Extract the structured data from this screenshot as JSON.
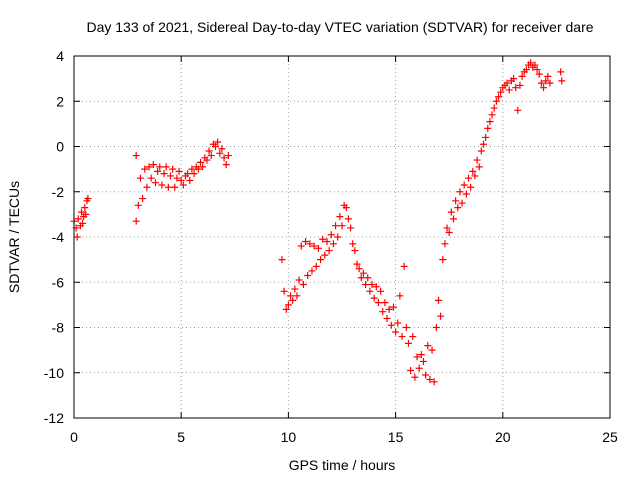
{
  "chart_data": {
    "type": "scatter",
    "title": "Day 133 of 2021, Sidereal Day-to-day VTEC variation (SDTVAR) for receiver dare",
    "xlabel": "GPS time / hours",
    "ylabel": "SDTVAR / TECUs",
    "xlim": [
      0,
      25
    ],
    "ylim": [
      -12,
      4
    ],
    "xticks": [
      0,
      5,
      10,
      15,
      20,
      25
    ],
    "yticks": [
      -12,
      -10,
      -8,
      -6,
      -4,
      -2,
      0,
      2,
      4
    ],
    "grid": true,
    "marker": "plus",
    "color": "#ff0000",
    "series": [
      {
        "points": [
          [
            0.0,
            -3.3
          ],
          [
            0.1,
            -3.6
          ],
          [
            0.15,
            -4.0
          ],
          [
            0.2,
            -3.2
          ],
          [
            0.3,
            -3.5
          ],
          [
            0.35,
            -2.9
          ],
          [
            0.4,
            -3.4
          ],
          [
            0.45,
            -3.1
          ],
          [
            0.5,
            -2.7
          ],
          [
            0.55,
            -3.0
          ],
          [
            0.6,
            -2.4
          ],
          [
            0.65,
            -2.3
          ],
          [
            2.9,
            -3.3
          ],
          [
            2.9,
            -0.4
          ],
          [
            3.0,
            -2.6
          ],
          [
            3.1,
            -1.4
          ],
          [
            3.2,
            -2.3
          ],
          [
            3.3,
            -1.0
          ],
          [
            3.4,
            -1.8
          ],
          [
            3.5,
            -0.9
          ],
          [
            3.6,
            -1.4
          ],
          [
            3.7,
            -0.8
          ],
          [
            3.8,
            -1.6
          ],
          [
            3.9,
            -1.1
          ],
          [
            4.0,
            -0.9
          ],
          [
            4.1,
            -1.7
          ],
          [
            4.2,
            -1.2
          ],
          [
            4.3,
            -0.9
          ],
          [
            4.4,
            -1.8
          ],
          [
            4.5,
            -1.3
          ],
          [
            4.6,
            -1.0
          ],
          [
            4.7,
            -1.8
          ],
          [
            4.8,
            -1.4
          ],
          [
            4.9,
            -1.1
          ],
          [
            5.0,
            -1.5
          ],
          [
            5.1,
            -1.7
          ],
          [
            5.2,
            -1.3
          ],
          [
            5.3,
            -1.2
          ],
          [
            5.4,
            -1.5
          ],
          [
            5.5,
            -1.0
          ],
          [
            5.6,
            -1.2
          ],
          [
            5.7,
            -0.9
          ],
          [
            5.8,
            -1.0
          ],
          [
            5.9,
            -0.7
          ],
          [
            6.0,
            -0.9
          ],
          [
            6.1,
            -0.5
          ],
          [
            6.2,
            -0.6
          ],
          [
            6.3,
            -0.2
          ],
          [
            6.4,
            -0.4
          ],
          [
            6.5,
            0.1
          ],
          [
            6.6,
            0.0
          ],
          [
            6.7,
            0.2
          ],
          [
            6.8,
            -0.3
          ],
          [
            6.9,
            -0.1
          ],
          [
            7.0,
            -0.5
          ],
          [
            7.1,
            -0.8
          ],
          [
            7.2,
            -0.4
          ],
          [
            9.7,
            -5.0
          ],
          [
            9.8,
            -6.4
          ],
          [
            9.9,
            -7.2
          ],
          [
            10.0,
            -7.0
          ],
          [
            10.1,
            -6.6
          ],
          [
            10.2,
            -6.8
          ],
          [
            10.3,
            -6.3
          ],
          [
            10.4,
            -6.6
          ],
          [
            10.5,
            -5.9
          ],
          [
            10.6,
            -4.4
          ],
          [
            10.7,
            -6.1
          ],
          [
            10.8,
            -4.2
          ],
          [
            10.9,
            -5.7
          ],
          [
            11.0,
            -4.3
          ],
          [
            11.1,
            -5.5
          ],
          [
            11.2,
            -4.4
          ],
          [
            11.3,
            -5.3
          ],
          [
            11.4,
            -4.5
          ],
          [
            11.5,
            -5.0
          ],
          [
            11.6,
            -4.1
          ],
          [
            11.7,
            -4.8
          ],
          [
            11.8,
            -4.2
          ],
          [
            11.9,
            -4.6
          ],
          [
            12.0,
            -3.9
          ],
          [
            12.1,
            -4.3
          ],
          [
            12.2,
            -3.5
          ],
          [
            12.3,
            -4.0
          ],
          [
            12.4,
            -3.1
          ],
          [
            12.5,
            -3.5
          ],
          [
            12.6,
            -2.6
          ],
          [
            12.7,
            -2.7
          ],
          [
            12.8,
            -3.2
          ],
          [
            12.9,
            -3.6
          ],
          [
            13.0,
            -4.3
          ],
          [
            13.1,
            -4.6
          ],
          [
            13.2,
            -5.2
          ],
          [
            13.3,
            -5.4
          ],
          [
            13.4,
            -5.8
          ],
          [
            13.5,
            -5.6
          ],
          [
            13.6,
            -6.1
          ],
          [
            13.7,
            -5.8
          ],
          [
            13.8,
            -6.4
          ],
          [
            13.9,
            -6.1
          ],
          [
            14.0,
            -6.7
          ],
          [
            14.1,
            -6.2
          ],
          [
            14.2,
            -6.9
          ],
          [
            14.3,
            -6.4
          ],
          [
            14.4,
            -7.3
          ],
          [
            14.5,
            -6.9
          ],
          [
            14.6,
            -7.6
          ],
          [
            14.7,
            -7.2
          ],
          [
            14.8,
            -7.9
          ],
          [
            14.9,
            -7.1
          ],
          [
            15.0,
            -8.2
          ],
          [
            15.1,
            -7.8
          ],
          [
            15.2,
            -6.6
          ],
          [
            15.3,
            -8.4
          ],
          [
            15.4,
            -5.3
          ],
          [
            15.5,
            -8.0
          ],
          [
            15.6,
            -8.7
          ],
          [
            15.7,
            -9.9
          ],
          [
            15.8,
            -8.4
          ],
          [
            15.9,
            -10.2
          ],
          [
            16.0,
            -9.3
          ],
          [
            16.1,
            -9.8
          ],
          [
            16.2,
            -9.2
          ],
          [
            16.3,
            -9.5
          ],
          [
            16.4,
            -10.1
          ],
          [
            16.5,
            -8.8
          ],
          [
            16.6,
            -10.3
          ],
          [
            16.7,
            -9.0
          ],
          [
            16.8,
            -10.4
          ],
          [
            16.9,
            -8.0
          ],
          [
            17.0,
            -6.8
          ],
          [
            17.1,
            -7.5
          ],
          [
            17.2,
            -5.0
          ],
          [
            17.3,
            -4.3
          ],
          [
            17.4,
            -3.6
          ],
          [
            17.5,
            -3.8
          ],
          [
            17.6,
            -2.9
          ],
          [
            17.7,
            -3.2
          ],
          [
            17.8,
            -2.4
          ],
          [
            17.9,
            -2.7
          ],
          [
            18.0,
            -2.0
          ],
          [
            18.1,
            -2.5
          ],
          [
            18.2,
            -1.7
          ],
          [
            18.3,
            -2.1
          ],
          [
            18.4,
            -1.4
          ],
          [
            18.5,
            -1.8
          ],
          [
            18.6,
            -1.1
          ],
          [
            18.7,
            -1.3
          ],
          [
            18.8,
            -0.6
          ],
          [
            18.9,
            -0.9
          ],
          [
            19.0,
            -0.2
          ],
          [
            19.1,
            0.1
          ],
          [
            19.2,
            0.4
          ],
          [
            19.3,
            0.8
          ],
          [
            19.4,
            1.1
          ],
          [
            19.5,
            1.4
          ],
          [
            19.6,
            1.7
          ],
          [
            19.7,
            2.0
          ],
          [
            19.8,
            2.2
          ],
          [
            19.9,
            2.4
          ],
          [
            20.0,
            2.6
          ],
          [
            20.1,
            2.7
          ],
          [
            20.2,
            2.8
          ],
          [
            20.3,
            2.5
          ],
          [
            20.4,
            2.9
          ],
          [
            20.5,
            3.0
          ],
          [
            20.6,
            2.6
          ],
          [
            20.7,
            1.6
          ],
          [
            20.8,
            2.7
          ],
          [
            20.9,
            3.1
          ],
          [
            21.0,
            3.3
          ],
          [
            21.1,
            3.4
          ],
          [
            21.2,
            3.6
          ],
          [
            21.3,
            3.7
          ],
          [
            21.4,
            3.5
          ],
          [
            21.5,
            3.6
          ],
          [
            21.6,
            3.4
          ],
          [
            21.7,
            3.2
          ],
          [
            21.8,
            2.8
          ],
          [
            21.9,
            2.6
          ],
          [
            22.0,
            2.9
          ],
          [
            22.1,
            3.1
          ],
          [
            22.2,
            2.8
          ],
          [
            22.7,
            3.3
          ],
          [
            22.75,
            2.9
          ]
        ]
      }
    ]
  }
}
